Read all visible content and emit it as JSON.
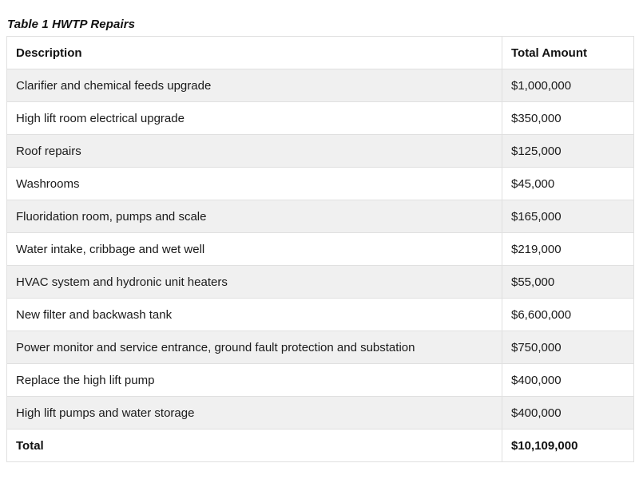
{
  "page": {
    "title": "Table 1 HWTP Repairs"
  },
  "table": {
    "columns": [
      "Description",
      "Total Amount"
    ],
    "rows": [
      {
        "description": "Clarifier and chemical feeds upgrade",
        "amount": "$1,000,000"
      },
      {
        "description": "High lift room electrical upgrade",
        "amount": "$350,000"
      },
      {
        "description": "Roof repairs",
        "amount": "$125,000"
      },
      {
        "description": "Washrooms",
        "amount": "$45,000"
      },
      {
        "description": "Fluoridation room, pumps and scale",
        "amount": "$165,000"
      },
      {
        "description": "Water intake, cribbage and wet well",
        "amount": "$219,000"
      },
      {
        "description": "HVAC system and hydronic unit heaters",
        "amount": "$55,000"
      },
      {
        "description": "New filter and backwash tank",
        "amount": "$6,600,000"
      },
      {
        "description": "Power monitor and service entrance, ground fault protection and substation",
        "amount": "$750,000"
      },
      {
        "description": "Replace the high lift pump",
        "amount": "$400,000"
      },
      {
        "description": "High lift pumps and water storage",
        "amount": "$400,000"
      }
    ],
    "total": {
      "label": "Total",
      "amount": "$10,109,000"
    }
  },
  "colors": {
    "stripe_row_background": "#f0f0f0",
    "border": "#e0e0e0",
    "text": "#1a1a1a"
  }
}
